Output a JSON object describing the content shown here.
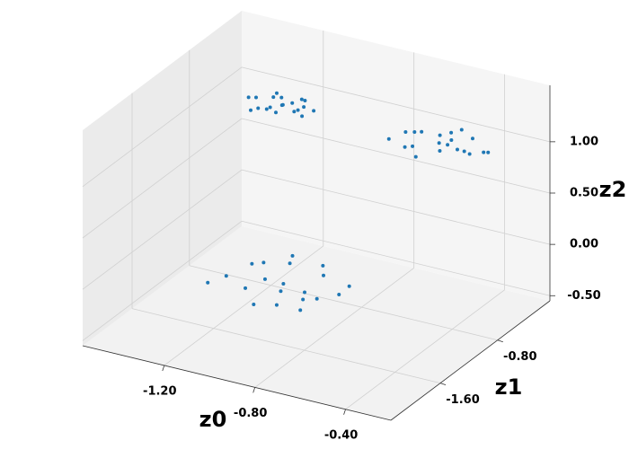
{
  "chart_data": {
    "type": "scatter3d",
    "color": "#1f77b4",
    "x_label": "z0",
    "y_label": "z1",
    "z_label": "z2",
    "xlim": [
      -1.56,
      -0.2
    ],
    "ylim": [
      -2.29,
      -0.07
    ],
    "zlim": [
      -0.55,
      1.55
    ],
    "xticks": [
      {
        "value": -1.2,
        "label": "-1.20"
      },
      {
        "value": -0.8,
        "label": "-0.80"
      },
      {
        "value": -0.4,
        "label": "-0.40"
      }
    ],
    "yticks": [
      {
        "value": -1.6,
        "label": "-1.60"
      },
      {
        "value": -0.8,
        "label": "-0.80"
      }
    ],
    "zticks": [
      {
        "value": -0.5,
        "label": "-0.50"
      },
      {
        "value": 0,
        "label": "0.00"
      },
      {
        "value": 0.5,
        "label": "0.50"
      },
      {
        "value": 1,
        "label": "1.00"
      }
    ],
    "grid": true,
    "x": [
      -1.12,
      -1.0,
      -1.25,
      -0.95,
      -1.3,
      -1.08,
      -1.18,
      -0.9,
      -1.35,
      -1.05,
      -1.15,
      -0.98,
      -1.22,
      -1.28,
      -1.02,
      -0.88,
      -1.4,
      -1.1,
      -1.2,
      -0.96,
      -1.12,
      -1.05,
      -1.2,
      -1.0,
      -1.25,
      -1.1,
      -1.16,
      -1.03,
      -1.22,
      -1.08,
      -1.14,
      -1.06,
      -1.18,
      -1.28,
      -0.98,
      -1.1,
      -1.15,
      -1.09,
      -1.2,
      -1.04,
      -0.61,
      -0.5,
      -0.72,
      -0.45,
      -0.78,
      -0.55,
      -0.66,
      -0.4,
      -0.8,
      -0.58,
      -0.64,
      -0.52,
      -0.7,
      -0.75,
      -0.48,
      -0.6,
      -0.68,
      -0.56,
      -0.62,
      -0.42
    ],
    "y": [
      -0.88,
      -0.7,
      -1.0,
      -0.95,
      -0.75,
      -1.1,
      -0.6,
      -0.8,
      -0.95,
      -0.55,
      -1.2,
      -1.05,
      -0.82,
      -0.65,
      -0.9,
      -0.72,
      -1.05,
      -0.98,
      -0.5,
      -1.15,
      -0.9,
      -0.8,
      -0.98,
      -1.0,
      -0.85,
      -0.95,
      -0.78,
      -0.88,
      -1.02,
      -0.75,
      -1.05,
      -0.92,
      -0.83,
      -0.86,
      -0.9,
      -0.82,
      -0.97,
      -1.08,
      -0.72,
      -0.93,
      -0.32,
      -0.2,
      -0.45,
      -0.4,
      -0.25,
      -0.5,
      -0.15,
      -0.3,
      -0.42,
      -0.1,
      -0.55,
      -0.35,
      -0.28,
      -0.22,
      -0.38,
      -0.18,
      -0.47,
      -0.36,
      -0.12,
      -0.3
    ],
    "z": [
      -0.45,
      -0.4,
      -0.5,
      -0.47,
      -0.42,
      -0.52,
      -0.43,
      -0.48,
      -0.46,
      -0.41,
      -0.5,
      -0.44,
      -0.49,
      -0.45,
      -0.47,
      -0.43,
      -0.5,
      -0.46,
      -0.42,
      -0.48,
      1.3,
      1.33,
      1.27,
      1.31,
      1.28,
      1.34,
      1.29,
      1.32,
      1.26,
      1.3,
      1.33,
      1.28,
      1.31,
      1.27,
      1.32,
      1.29,
      1.3,
      1.34,
      1.28,
      1.31,
      0.9,
      0.94,
      0.87,
      0.92,
      0.88,
      0.95,
      0.86,
      0.91,
      0.89,
      0.93,
      0.87,
      0.9,
      0.94,
      0.88,
      0.92,
      0.86,
      0.91,
      0.93,
      0.89,
      0.9
    ]
  }
}
